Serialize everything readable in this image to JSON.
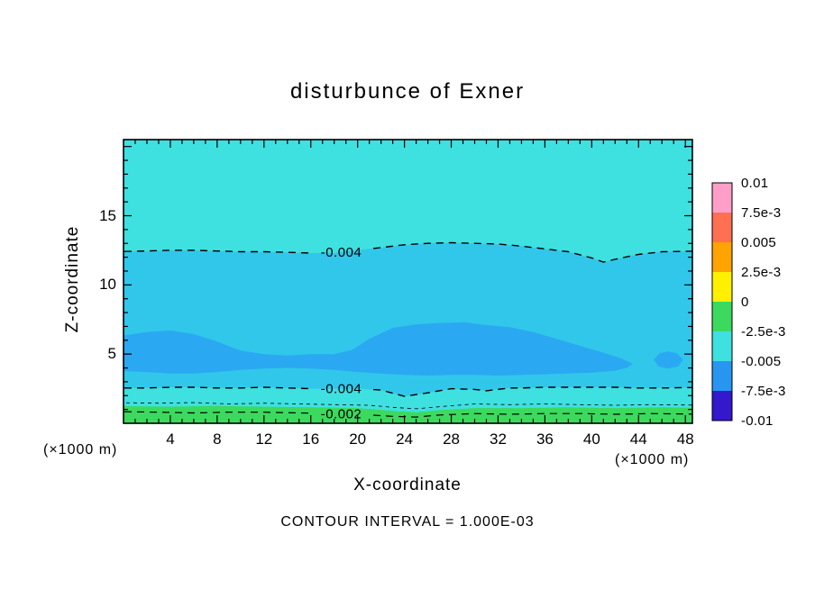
{
  "chart_data": {
    "type": "contour",
    "title": "disturbunce of Exner",
    "xlabel": "X-coordinate",
    "ylabel": "Z-coordinate",
    "x_unit_left": "(×1000 m)",
    "x_unit_right": "(×1000 m)",
    "footer": "CONTOUR INTERVAL = 1.000E-03",
    "x_min": 0,
    "x_max": 48.6,
    "z_min": 0,
    "z_max": 20.5,
    "x_tick_labels": [
      4,
      8,
      12,
      16,
      20,
      24,
      28,
      32,
      36,
      40,
      44,
      48
    ],
    "x_major_step": 4,
    "z_tick_labels": [
      5,
      10,
      15
    ],
    "z_major_step": 5,
    "fills": {
      "base_color": "#3fe0e0",
      "regions": [
        {
          "name": "mid-band",
          "color": "#31c7ea",
          "points": [
            [
              -1,
              12.4
            ],
            [
              2,
              12.45
            ],
            [
              4,
              12.5
            ],
            [
              6,
              12.5
            ],
            [
              8,
              12.45
            ],
            [
              10,
              12.4
            ],
            [
              12,
              12.4
            ],
            [
              14,
              12.35
            ],
            [
              16,
              12.3
            ],
            [
              18,
              12.3
            ],
            [
              20,
              12.5
            ],
            [
              22,
              12.7
            ],
            [
              24,
              12.9
            ],
            [
              26,
              13.0
            ],
            [
              28,
              13.05
            ],
            [
              30,
              13.0
            ],
            [
              32,
              12.95
            ],
            [
              34,
              12.8
            ],
            [
              36,
              12.6
            ],
            [
              38,
              12.4
            ],
            [
              40,
              11.95
            ],
            [
              41,
              11.65
            ],
            [
              42,
              11.85
            ],
            [
              44,
              12.2
            ],
            [
              46,
              12.4
            ],
            [
              50,
              12.45
            ],
            [
              50,
              2.6
            ],
            [
              46,
              2.55
            ],
            [
              44,
              2.55
            ],
            [
              42,
              2.6
            ],
            [
              40,
              2.6
            ],
            [
              38,
              2.6
            ],
            [
              36,
              2.6
            ],
            [
              34,
              2.55
            ],
            [
              33,
              2.55
            ],
            [
              31,
              2.35
            ],
            [
              30,
              2.45
            ],
            [
              28,
              2.5
            ],
            [
              26,
              2.2
            ],
            [
              24,
              1.95
            ],
            [
              22,
              2.4
            ],
            [
              20,
              2.5
            ],
            [
              18,
              2.5
            ],
            [
              16,
              2.5
            ],
            [
              14,
              2.55
            ],
            [
              12,
              2.6
            ],
            [
              10,
              2.55
            ],
            [
              8,
              2.55
            ],
            [
              6,
              2.6
            ],
            [
              4,
              2.6
            ],
            [
              2,
              2.55
            ],
            [
              -1,
              2.55
            ]
          ]
        },
        {
          "name": "deep-band",
          "color": "#2aa9f2",
          "points": [
            [
              -1,
              6.2
            ],
            [
              2,
              6.6
            ],
            [
              4,
              6.7
            ],
            [
              6,
              6.45
            ],
            [
              8,
              5.9
            ],
            [
              10,
              5.25
            ],
            [
              12,
              5.0
            ],
            [
              14,
              4.9
            ],
            [
              16,
              5.0
            ],
            [
              18,
              5.0
            ],
            [
              19.5,
              5.3
            ],
            [
              21,
              6.1
            ],
            [
              23,
              6.9
            ],
            [
              25,
              7.15
            ],
            [
              27,
              7.25
            ],
            [
              29,
              7.3
            ],
            [
              31,
              7.1
            ],
            [
              33,
              6.95
            ],
            [
              35,
              6.6
            ],
            [
              37,
              6.1
            ],
            [
              39,
              5.6
            ],
            [
              41,
              5.1
            ],
            [
              42.5,
              4.7
            ],
            [
              43.5,
              4.3
            ],
            [
              43,
              4.0
            ],
            [
              42,
              3.8
            ],
            [
              40,
              3.65
            ],
            [
              38,
              3.6
            ],
            [
              36,
              3.55
            ],
            [
              34,
              3.5
            ],
            [
              32,
              3.45
            ],
            [
              30,
              3.5
            ],
            [
              28,
              3.5
            ],
            [
              26,
              3.45
            ],
            [
              24,
              3.5
            ],
            [
              22,
              3.6
            ],
            [
              20,
              3.7
            ],
            [
              18,
              3.85
            ],
            [
              16,
              3.95
            ],
            [
              14,
              4.0
            ],
            [
              12,
              3.95
            ],
            [
              10,
              3.85
            ],
            [
              8,
              3.7
            ],
            [
              6,
              3.6
            ],
            [
              4,
              3.6
            ],
            [
              2,
              3.7
            ],
            [
              -1,
              3.8
            ]
          ]
        },
        {
          "name": "deep-blob-right",
          "color": "#2aa9f2",
          "points": [
            [
              45.3,
              4.6
            ],
            [
              45.8,
              5.05
            ],
            [
              46.5,
              5.2
            ],
            [
              47.3,
              5.05
            ],
            [
              47.8,
              4.6
            ],
            [
              47.4,
              4.1
            ],
            [
              46.5,
              3.95
            ],
            [
              45.7,
              4.1
            ]
          ]
        },
        {
          "name": "surface-green",
          "color": "#3cd95f",
          "points": [
            [
              -1,
              1.25
            ],
            [
              4,
              1.2
            ],
            [
              8,
              1.25
            ],
            [
              12,
              1.2
            ],
            [
              16,
              1.15
            ],
            [
              20,
              1.1
            ],
            [
              23,
              0.9
            ],
            [
              25,
              0.8
            ],
            [
              27,
              0.95
            ],
            [
              30,
              1.1
            ],
            [
              34,
              1.1
            ],
            [
              38,
              1.15
            ],
            [
              42,
              1.1
            ],
            [
              46,
              1.15
            ],
            [
              50,
              1.1
            ],
            [
              50,
              -1
            ],
            [
              -1,
              -1
            ]
          ]
        }
      ]
    },
    "contours": [
      {
        "level": -0.004,
        "label": "-0.004",
        "label_x": 18.6,
        "width": 1.4,
        "dash": "8,6",
        "points": [
          [
            -1,
            12.4
          ],
          [
            2,
            12.45
          ],
          [
            4,
            12.5
          ],
          [
            6,
            12.5
          ],
          [
            8,
            12.45
          ],
          [
            10,
            12.4
          ],
          [
            12,
            12.4
          ],
          [
            14,
            12.35
          ],
          [
            16,
            12.3
          ],
          [
            18,
            12.3
          ],
          [
            20,
            12.5
          ],
          [
            22,
            12.7
          ],
          [
            24,
            12.9
          ],
          [
            26,
            13.0
          ],
          [
            28,
            13.05
          ],
          [
            30,
            13.0
          ],
          [
            32,
            12.95
          ],
          [
            34,
            12.8
          ],
          [
            36,
            12.6
          ],
          [
            38,
            12.4
          ],
          [
            40,
            11.95
          ],
          [
            41,
            11.65
          ],
          [
            42,
            11.85
          ],
          [
            44,
            12.2
          ],
          [
            46,
            12.4
          ],
          [
            50,
            12.45
          ]
        ]
      },
      {
        "level": -0.004,
        "label": "-0.004",
        "label_x": 18.6,
        "width": 1.4,
        "dash": "8,6",
        "points": [
          [
            -1,
            2.55
          ],
          [
            2,
            2.55
          ],
          [
            4,
            2.6
          ],
          [
            6,
            2.6
          ],
          [
            8,
            2.55
          ],
          [
            10,
            2.55
          ],
          [
            12,
            2.6
          ],
          [
            14,
            2.55
          ],
          [
            16,
            2.5
          ],
          [
            18,
            2.5
          ],
          [
            20,
            2.5
          ],
          [
            22,
            2.4
          ],
          [
            24,
            1.95
          ],
          [
            26,
            2.2
          ],
          [
            28,
            2.5
          ],
          [
            30,
            2.45
          ],
          [
            31,
            2.35
          ],
          [
            33,
            2.55
          ],
          [
            34,
            2.55
          ],
          [
            36,
            2.6
          ],
          [
            38,
            2.6
          ],
          [
            40,
            2.6
          ],
          [
            42,
            2.6
          ],
          [
            44,
            2.55
          ],
          [
            46,
            2.55
          ],
          [
            50,
            2.6
          ]
        ]
      },
      {
        "level": -0.003,
        "label": null,
        "label_x": null,
        "width": 0.8,
        "dash": "4,4",
        "points": [
          [
            -1,
            1.5
          ],
          [
            3,
            1.45
          ],
          [
            6,
            1.5
          ],
          [
            9,
            1.4
          ],
          [
            12,
            1.45
          ],
          [
            15,
            1.4
          ],
          [
            18,
            1.35
          ],
          [
            21,
            1.3
          ],
          [
            23,
            1.15
          ],
          [
            25,
            1.05
          ],
          [
            27,
            1.2
          ],
          [
            30,
            1.4
          ],
          [
            33,
            1.35
          ],
          [
            36,
            1.4
          ],
          [
            39,
            1.35
          ],
          [
            42,
            1.3
          ],
          [
            45,
            1.35
          ],
          [
            50,
            1.3
          ]
        ]
      },
      {
        "level": -0.002,
        "label": "-0.002",
        "label_x": 18.6,
        "width": 1.2,
        "dash": "8,6",
        "points": [
          [
            -1,
            0.85
          ],
          [
            3,
            0.8
          ],
          [
            6,
            0.75
          ],
          [
            9,
            0.8
          ],
          [
            12,
            0.8
          ],
          [
            15,
            0.75
          ],
          [
            18,
            0.7
          ],
          [
            21,
            0.6
          ],
          [
            23,
            0.5
          ],
          [
            25,
            0.45
          ],
          [
            27,
            0.6
          ],
          [
            30,
            0.7
          ],
          [
            33,
            0.65
          ],
          [
            36,
            0.7
          ],
          [
            39,
            0.7
          ],
          [
            42,
            0.65
          ],
          [
            45,
            0.7
          ],
          [
            50,
            0.65
          ]
        ]
      }
    ],
    "colorbar": {
      "labels": [
        "0.01",
        "7.5e-3",
        "0.005",
        "2.5e-3",
        "0",
        "-2.5e-3",
        "-0.005",
        "-7.5e-3",
        "-0.01"
      ],
      "colors": [
        "#ff9ec9",
        "#ff6f52",
        "#ffa300",
        "#ffef00",
        "#3cd95f",
        "#3fe0e0",
        "#2796f0",
        "#3318cc"
      ]
    }
  }
}
